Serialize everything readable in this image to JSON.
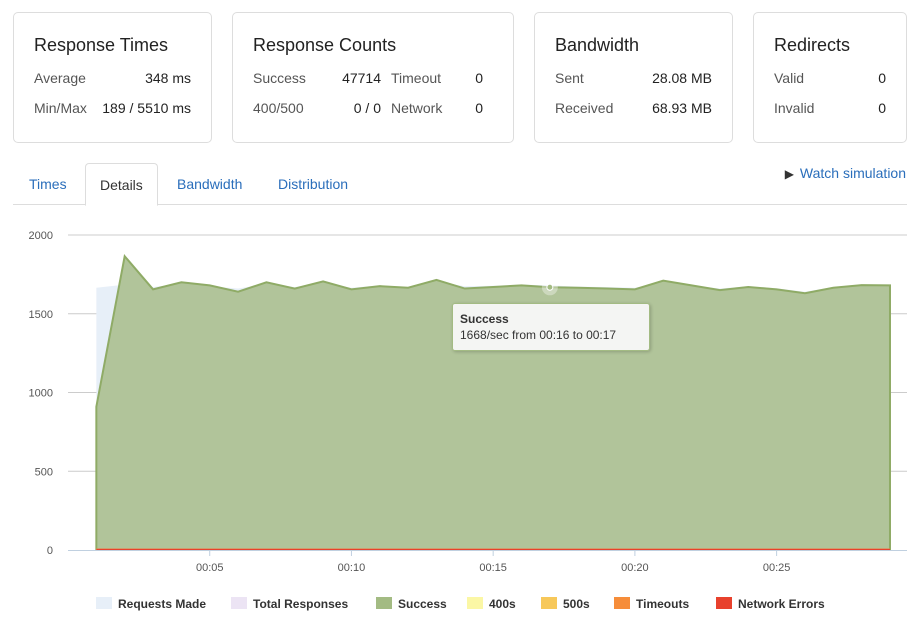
{
  "cards": {
    "response_times": {
      "title": "Response Times",
      "average_label": "Average",
      "average_value": "348 ms",
      "minmax_label": "Min/Max",
      "minmax_value": "189 / 5510 ms"
    },
    "response_counts": {
      "title": "Response Counts",
      "success_label": "Success",
      "success_value": "47714",
      "timeout_label": "Timeout",
      "timeout_value": "0",
      "errors_label": "400/500",
      "errors_value": "0 / 0",
      "network_label": "Network",
      "network_value": "0"
    },
    "bandwidth": {
      "title": "Bandwidth",
      "sent_label": "Sent",
      "sent_value": "28.08 MB",
      "received_label": "Received",
      "received_value": "68.93 MB"
    },
    "redirects": {
      "title": "Redirects",
      "valid_label": "Valid",
      "valid_value": "0",
      "invalid_label": "Invalid",
      "invalid_value": "0"
    }
  },
  "tabs": [
    {
      "label": "Times"
    },
    {
      "label": "Details"
    },
    {
      "label": "Bandwidth"
    },
    {
      "label": "Distribution"
    }
  ],
  "watch_simulation": "Watch simulation",
  "tooltip": {
    "title": "Success",
    "text": "1668/sec from 00:16 to 00:17"
  },
  "legend": [
    {
      "label": "Requests Made",
      "color": "#e7eff8"
    },
    {
      "label": "Total Responses",
      "color": "#ece4f4"
    },
    {
      "label": "Success",
      "color": "#a3bb83"
    },
    {
      "label": "400s",
      "color": "#fbf7a5"
    },
    {
      "label": "500s",
      "color": "#f7c85a"
    },
    {
      "label": "Timeouts",
      "color": "#f68d3a"
    },
    {
      "label": "Network Errors",
      "color": "#e8412d"
    }
  ],
  "chart_data": {
    "type": "area",
    "ylim": [
      0,
      2000
    ],
    "yticks": [
      "2000",
      "1500",
      "1000",
      "500",
      "0"
    ],
    "xticks": [
      "00:05",
      "00:10",
      "00:15",
      "00:20",
      "00:25"
    ],
    "x": [
      1,
      2,
      3,
      4,
      5,
      6,
      7,
      8,
      9,
      10,
      11,
      12,
      13,
      14,
      15,
      16,
      17,
      18,
      19,
      20,
      21,
      22,
      23,
      24,
      25,
      26,
      27,
      28,
      29
    ],
    "series": [
      {
        "name": "Requests Made",
        "color": "#e7eff8",
        "values": [
          1665,
          1685,
          1670,
          1690,
          1675,
          1660,
          1690,
          1670,
          1695,
          1665,
          1680,
          1670,
          1705,
          1675,
          1678,
          1685,
          1680,
          1672,
          1670,
          1665,
          1700,
          1680,
          1660,
          1675,
          1662,
          1640,
          1670,
          1685,
          1683
        ]
      },
      {
        "name": "Total Responses",
        "color": "#ece4f4",
        "values": [
          910,
          1865,
          1655,
          1700,
          1680,
          1640,
          1700,
          1660,
          1705,
          1655,
          1675,
          1665,
          1715,
          1660,
          1670,
          1680,
          1668,
          1665,
          1660,
          1655,
          1710,
          1680,
          1650,
          1670,
          1655,
          1630,
          1665,
          1682,
          1680
        ]
      },
      {
        "name": "Success",
        "color": "#a3bb83",
        "values": [
          910,
          1865,
          1655,
          1700,
          1680,
          1640,
          1700,
          1660,
          1705,
          1655,
          1675,
          1665,
          1715,
          1660,
          1670,
          1680,
          1668,
          1665,
          1660,
          1655,
          1710,
          1680,
          1650,
          1670,
          1655,
          1630,
          1665,
          1682,
          1680
        ]
      },
      {
        "name": "400s",
        "color": "#fbf7a5",
        "values": [
          0,
          0,
          0,
          0,
          0,
          0,
          0,
          0,
          0,
          0,
          0,
          0,
          0,
          0,
          0,
          0,
          0,
          0,
          0,
          0,
          0,
          0,
          0,
          0,
          0,
          0,
          0,
          0,
          0
        ]
      },
      {
        "name": "500s",
        "color": "#f7c85a",
        "values": [
          0,
          0,
          0,
          0,
          0,
          0,
          0,
          0,
          0,
          0,
          0,
          0,
          0,
          0,
          0,
          0,
          0,
          0,
          0,
          0,
          0,
          0,
          0,
          0,
          0,
          0,
          0,
          0,
          0
        ]
      },
      {
        "name": "Timeouts",
        "color": "#f68d3a",
        "values": [
          0,
          0,
          0,
          0,
          0,
          0,
          0,
          0,
          0,
          0,
          0,
          0,
          0,
          0,
          0,
          0,
          0,
          0,
          0,
          0,
          0,
          0,
          0,
          0,
          0,
          0,
          0,
          0,
          0
        ]
      },
      {
        "name": "Network Errors",
        "color": "#e8412d",
        "values": [
          0,
          0,
          0,
          0,
          0,
          0,
          0,
          0,
          0,
          0,
          0,
          0,
          0,
          0,
          0,
          0,
          0,
          0,
          0,
          0,
          0,
          0,
          0,
          0,
          0,
          0,
          0,
          0,
          0
        ]
      }
    ],
    "highlight": {
      "series": "Success",
      "x": 17,
      "value": 1668
    }
  }
}
